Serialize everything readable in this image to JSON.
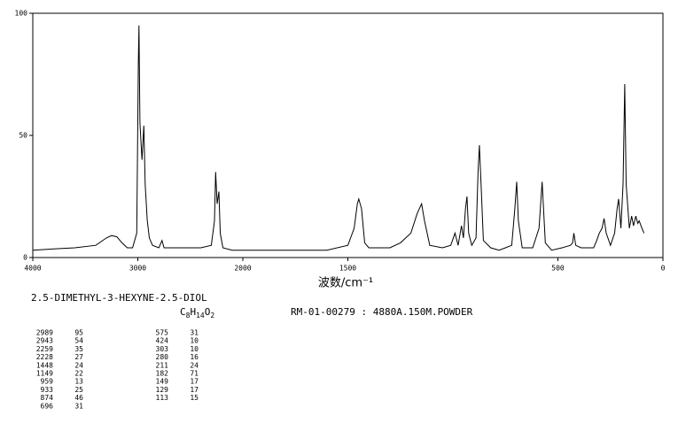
{
  "chart_data": {
    "type": "line",
    "x_label": "波数/cm⁻¹",
    "xlim": [
      4000,
      0
    ],
    "ylim": [
      0,
      100
    ],
    "x_scale": {
      "break": 2000,
      "ratio": 2
    },
    "xticks": [
      4000,
      3000,
      2000,
      1500,
      500,
      0
    ],
    "yticks": [
      0,
      50,
      100
    ],
    "color": "#000000",
    "series": [
      {
        "x": [
          4000,
          3800,
          3600,
          3400,
          3300,
          3250,
          3200,
          3150,
          3100,
          3050,
          3010,
          2995,
          2989,
          2980,
          2960,
          2943,
          2930,
          2910,
          2890,
          2860,
          2800,
          2770,
          2750,
          2600,
          2400,
          2300,
          2270,
          2259,
          2245,
          2228,
          2215,
          2190,
          2100,
          2000,
          1800,
          1600,
          1500,
          1470,
          1455,
          1448,
          1435,
          1420,
          1400,
          1300,
          1250,
          1200,
          1170,
          1149,
          1135,
          1110,
          1050,
          1010,
          990,
          975,
          959,
          950,
          940,
          933,
          925,
          910,
          890,
          880,
          874,
          866,
          855,
          820,
          780,
          750,
          720,
          705,
          696,
          688,
          670,
          620,
          590,
          575,
          560,
          530,
          480,
          440,
          430,
          424,
          415,
          390,
          360,
          330,
          315,
          303,
          290,
          280,
          270,
          250,
          230,
          218,
          211,
          200,
          190,
          182,
          175,
          160,
          149,
          140,
          129,
          120,
          113,
          100,
          90
        ],
        "values": [
          3,
          3.5,
          4,
          5,
          8,
          9,
          8.5,
          6,
          4,
          4,
          10,
          80,
          95,
          55,
          40,
          54,
          30,
          15,
          8,
          5,
          4,
          7,
          4,
          4,
          4,
          5,
          15,
          35,
          22,
          27,
          10,
          4,
          3,
          3,
          3,
          3,
          5,
          12,
          22,
          24,
          20,
          6,
          4,
          4,
          6,
          10,
          18,
          22,
          15,
          5,
          4,
          5,
          10,
          5,
          13,
          8,
          20,
          25,
          10,
          5,
          8,
          35,
          46,
          30,
          7,
          4,
          3,
          4,
          5,
          20,
          31,
          15,
          4,
          4,
          12,
          31,
          6,
          3,
          4,
          5,
          6,
          10,
          5,
          4,
          4,
          4,
          7,
          10,
          12,
          16,
          10,
          5,
          10,
          20,
          24,
          12,
          30,
          71,
          30,
          12,
          17,
          13,
          17,
          14,
          15,
          12,
          10
        ]
      }
    ]
  },
  "compound": "2.5-DIMETHYL-3-HEXYNE-2.5-DIOL",
  "formula": [
    "C",
    "8",
    "H",
    "14",
    "O",
    "2"
  ],
  "sample_info": "RM-01-00279 : 4880A.150M.POWDER",
  "peaks": [
    [
      "2989",
      "95"
    ],
    [
      "2943",
      "54"
    ],
    [
      "2259",
      "35"
    ],
    [
      "2228",
      "27"
    ],
    [
      "1448",
      "24"
    ],
    [
      "1149",
      "22"
    ],
    [
      "959",
      "13"
    ],
    [
      "933",
      "25"
    ],
    [
      "874",
      "46"
    ],
    [
      "696",
      "31"
    ],
    [
      "575",
      "31"
    ],
    [
      "424",
      "10"
    ],
    [
      "303",
      "10"
    ],
    [
      "280",
      "16"
    ],
    [
      "211",
      "24"
    ],
    [
      "182",
      "71"
    ],
    [
      "149",
      "17"
    ],
    [
      "129",
      "17"
    ],
    [
      "113",
      "15"
    ]
  ]
}
